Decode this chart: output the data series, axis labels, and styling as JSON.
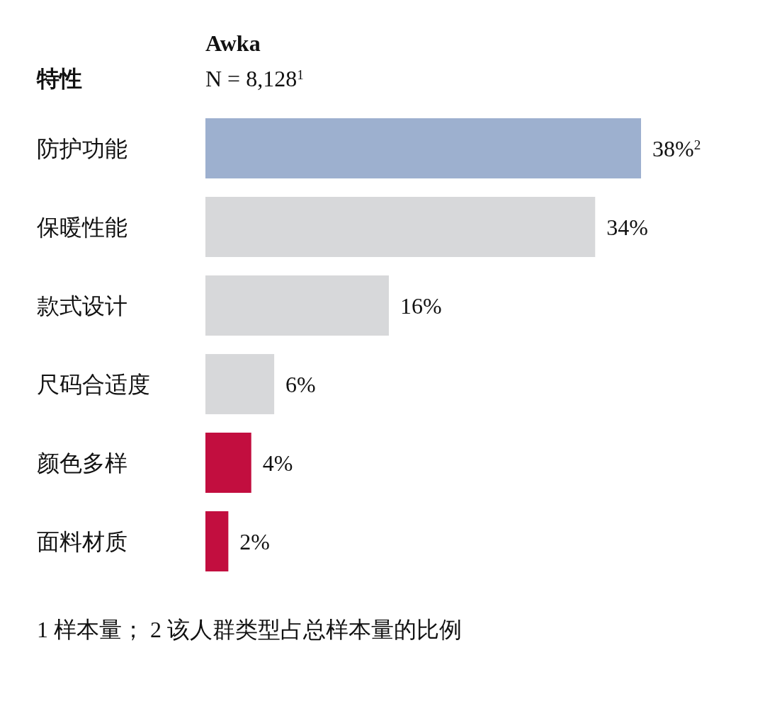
{
  "chart_data": {
    "type": "bar",
    "orientation": "horizontal",
    "title": "Awka",
    "subtitle": "N = 8,128$^{1}$",
    "ylabel": "特性",
    "categories": [
      "防护功能",
      "保暖性能",
      "款式设计",
      "尺码合适度",
      "颜色多样",
      "面料材质"
    ],
    "values": [
      38,
      34,
      16,
      6,
      4,
      2
    ],
    "colors": [
      "#9db0cf",
      "#d7d8da",
      "#d7d8da",
      "#d7d8da",
      "#c20e3f",
      "#c20e3f"
    ],
    "value_labels": [
      "38%$^{2}$",
      "34%",
      "16%",
      "6%",
      "4%",
      "2%"
    ],
    "annotations": [
      "1 样本量； 2 该人群类型占总样本量的比例"
    ]
  }
}
